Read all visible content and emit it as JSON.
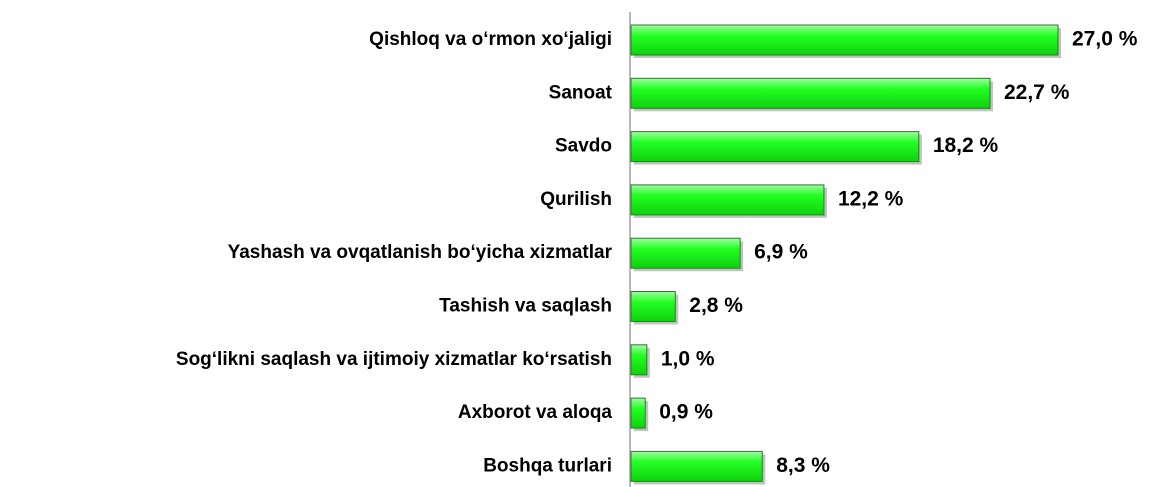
{
  "chart_data": {
    "type": "bar",
    "orientation": "horizontal",
    "categories": [
      "Qishloq va o‘rmon xo‘jaligi",
      "Sanoat",
      "Savdo",
      "Qurilish",
      "Yashash va ovqatlanish bo‘yicha xizmatlar",
      "Tashish va saqlash",
      "Sog‘likni saqlash va ijtimoiy xizmatlar ko‘rsatish",
      "Axborot va aloqa",
      "Boshqa turlari"
    ],
    "values": [
      27.0,
      22.7,
      18.2,
      12.2,
      6.9,
      2.8,
      1.0,
      0.9,
      8.3
    ],
    "value_labels": [
      "27,0 %",
      "22,7 %",
      "18,2 %",
      "12,2 %",
      "6,9 %",
      "2,8 %",
      "1,0 %",
      "0,9 %",
      "8,3 %"
    ],
    "color": "#22ff22"
  }
}
